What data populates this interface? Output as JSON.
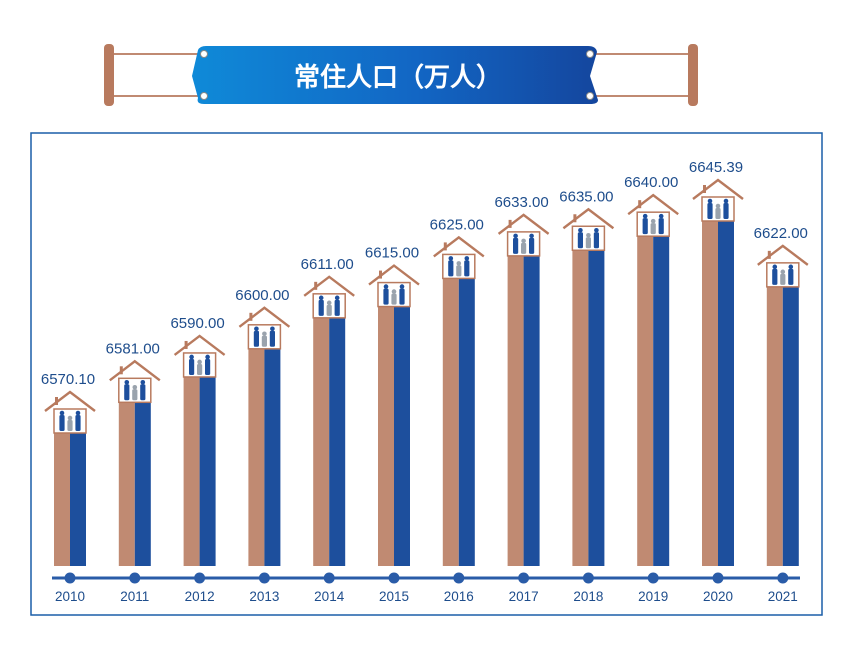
{
  "chart_data": {
    "type": "bar",
    "title": "常住人口（万人）",
    "categories": [
      "2010",
      "2011",
      "2012",
      "2013",
      "2014",
      "2015",
      "2016",
      "2017",
      "2018",
      "2019",
      "2020",
      "2021"
    ],
    "values": [
      6570.1,
      6581.0,
      6590.0,
      6600.0,
      6611.0,
      6615.0,
      6625.0,
      6633.0,
      6635.0,
      6640.0,
      6645.39,
      6622.0
    ],
    "value_labels": [
      "6570.10",
      "6581.00",
      "6590.00",
      "6600.00",
      "6611.00",
      "6615.00",
      "6625.00",
      "6633.00",
      "6635.00",
      "6640.00",
      "6645.39",
      "6622.00"
    ],
    "xlabel": "",
    "ylabel": "",
    "grid": false,
    "legend": "none"
  },
  "colors": {
    "bar_left": "#c08a72",
    "bar_right": "#1d4f9d",
    "roof": "#b87a5e",
    "title_banner": "#1266c4",
    "frame": "#1a5ea8",
    "timeline": "#2a5ca8",
    "label": "#1e4d8c"
  },
  "icons": {
    "house": "family-house-icon",
    "dot": "timeline-dot-icon"
  }
}
